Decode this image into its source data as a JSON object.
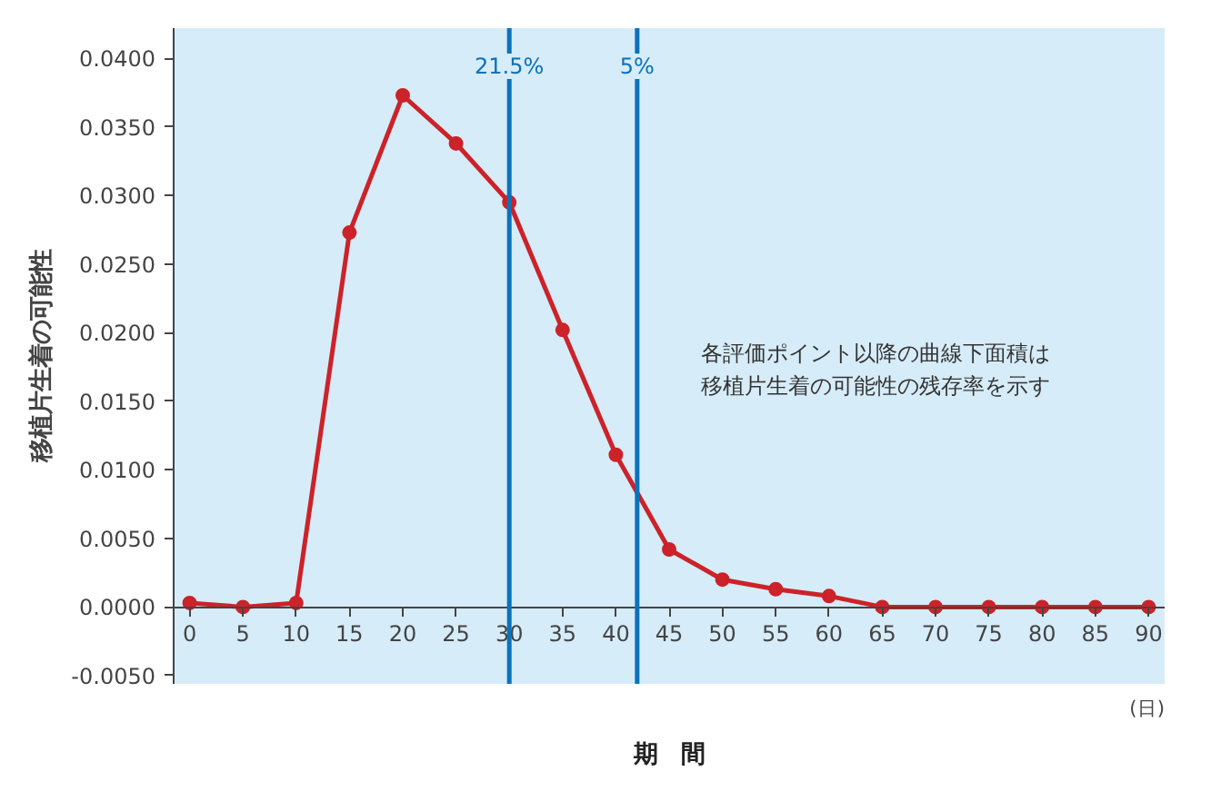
{
  "chart_data": {
    "type": "line",
    "xlabel": "期　間",
    "ylabel": "移植片生着の可能性",
    "x": [
      0,
      5,
      10,
      15,
      20,
      25,
      30,
      35,
      40,
      45,
      50,
      55,
      60,
      65,
      70,
      75,
      80,
      85,
      90
    ],
    "series": [
      {
        "color": "#cc2229",
        "values": [
          0.0003,
          0.0,
          0.0003,
          0.0273,
          0.0373,
          0.0338,
          0.0295,
          0.0202,
          0.0111,
          0.0042,
          0.002,
          0.0013,
          0.0008,
          0.0,
          0.0,
          0.0,
          0.0,
          0.0,
          0.0
        ]
      }
    ],
    "marker": "circle",
    "grid": false,
    "xlim": [
      -1.5,
      91.5
    ],
    "ylim": [
      -0.0056,
      0.0422
    ],
    "xticks": [
      0,
      5,
      10,
      15,
      20,
      25,
      30,
      35,
      40,
      45,
      50,
      55,
      60,
      65,
      70,
      75,
      80,
      85,
      90
    ],
    "yticks": [
      {
        "value": -0.005,
        "label": "-0.0050"
      },
      {
        "value": 0,
        "label": "0.0000"
      },
      {
        "value": 0.005,
        "label": "0.0050"
      },
      {
        "value": 0.01,
        "label": "0.0100"
      },
      {
        "value": 0.015,
        "label": "0.0150"
      },
      {
        "value": 0.02,
        "label": "0.0200"
      },
      {
        "value": 0.025,
        "label": "0.0250"
      },
      {
        "value": 0.03,
        "label": "0.0300"
      },
      {
        "value": 0.035,
        "label": "0.0350"
      },
      {
        "value": 0.04,
        "label": "0.0400"
      }
    ],
    "ref_lines": [
      {
        "axis": "x",
        "value": 30,
        "color": "#0a72bb"
      },
      {
        "axis": "x",
        "value": 42,
        "color": "#0a72bb"
      }
    ],
    "annotations": [
      {
        "text": "21.5%",
        "x": 30,
        "y": 0.0385
      },
      {
        "text": "5%",
        "x": 42,
        "y": 0.0385
      },
      "各評価ポイント以降の曲線下面積は",
      "移植片生着の可能性の残存率を示す",
      "(日)"
    ]
  }
}
